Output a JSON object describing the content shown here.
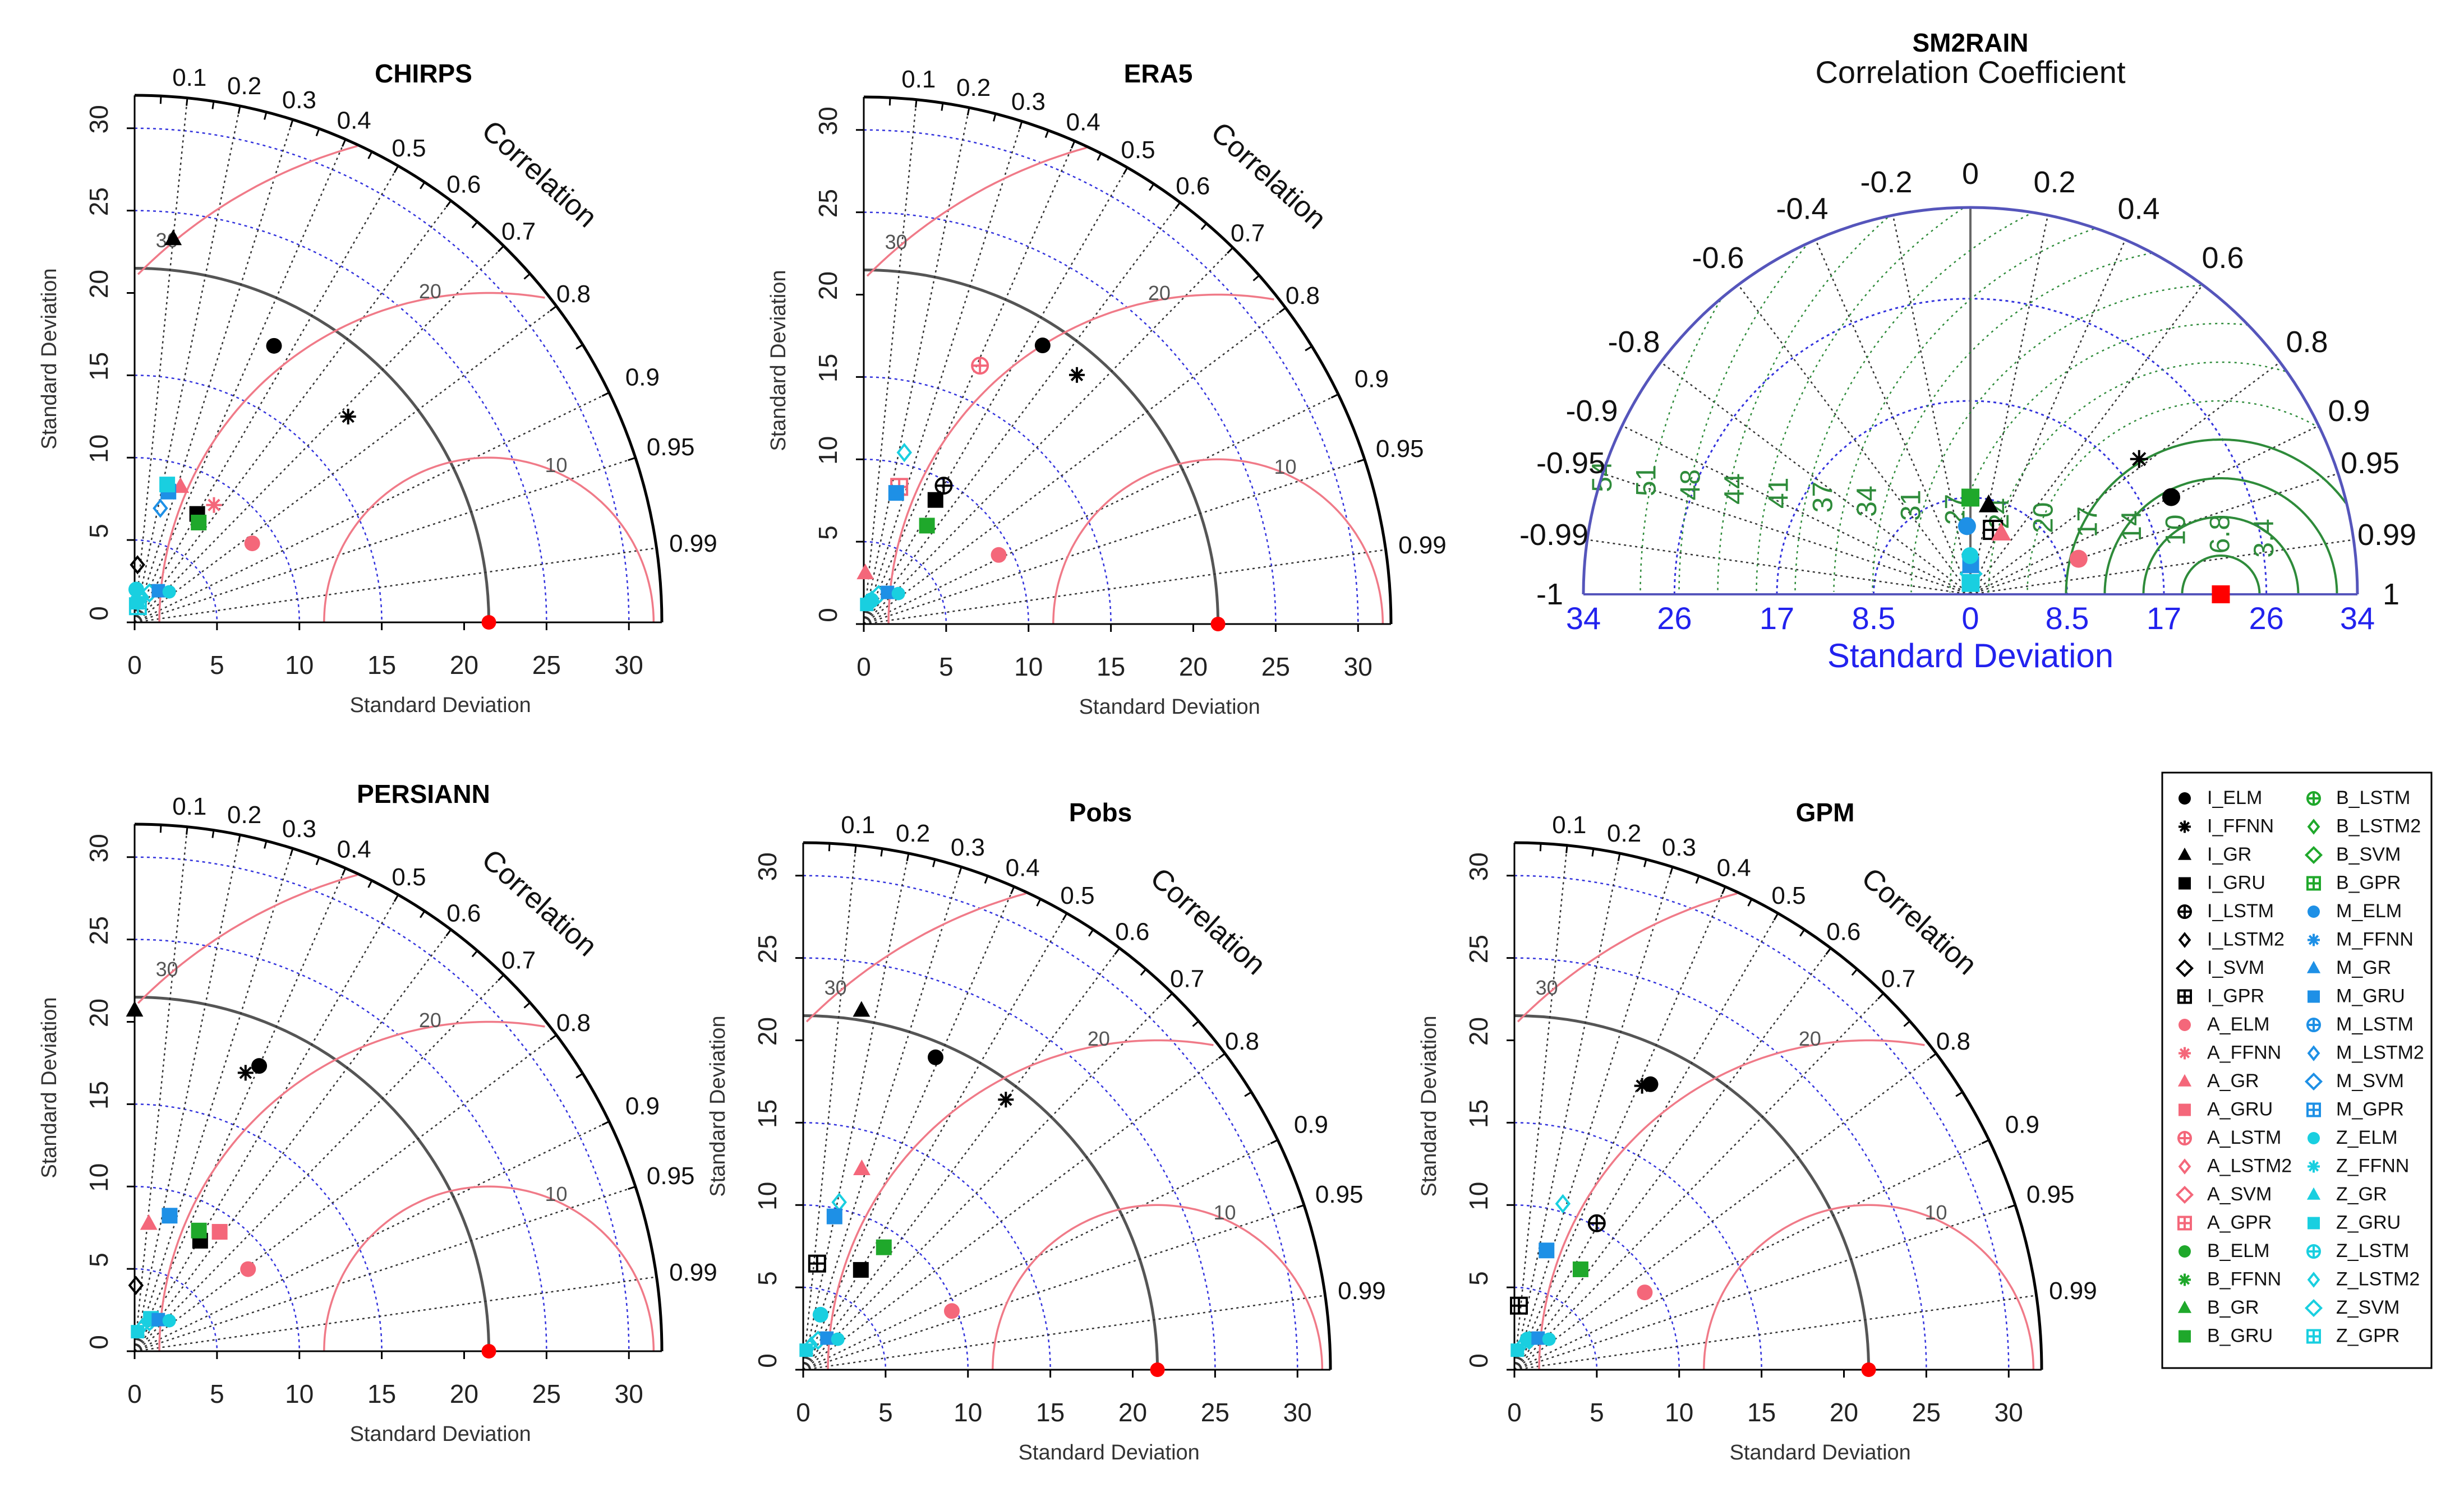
{
  "chart_data": [
    {
      "type": "scatter",
      "chart_kind": "taylor",
      "title": "CHIRPS",
      "xlabel": "Standard Deviation",
      "ylabel": "Standard Deviation",
      "correlation_label": "Correlation",
      "sd_ticks": [
        0,
        5,
        10,
        15,
        20,
        25,
        30
      ],
      "xlim": [
        0,
        32
      ],
      "correlation_ticks": [
        "0.1",
        "0.2",
        "0.3",
        "0.4",
        "0.5",
        "0.6",
        "0.7",
        "0.8",
        "0.9",
        "0.95",
        "0.99"
      ],
      "rms_labels": [
        "10",
        "20",
        "30"
      ],
      "reference": {
        "sd": 21.5,
        "color": "#ff0000"
      },
      "points": [
        {
          "model": "I_ELM",
          "sd": 18.8,
          "r": 0.45
        },
        {
          "model": "I_FFNN",
          "sd": 18.0,
          "r": 0.72
        },
        {
          "model": "I_GR",
          "sd": 23.4,
          "r": 0.1
        },
        {
          "model": "I_GRU",
          "sd": 7.6,
          "r": 0.5
        },
        {
          "model": "A_ELM",
          "sd": 8.6,
          "r": 0.83
        },
        {
          "model": "A_FFNN",
          "sd": 8.6,
          "r": 0.56
        },
        {
          "model": "A_GR",
          "sd": 8.7,
          "r": 0.32
        },
        {
          "model": "B_GRU",
          "sd": 7.2,
          "r": 0.54
        },
        {
          "model": "M_GRU",
          "sd": 8.2,
          "r": 0.25
        },
        {
          "model": "M_LSTM2",
          "sd": 7.1,
          "r": 0.22
        },
        {
          "model": "Z_GRU",
          "sd": 8.6,
          "r": 0.23
        },
        {
          "model": "Z_ELM",
          "sd": 2.0,
          "r": 0.05
        },
        {
          "model": "Z_GPR",
          "sd": 1.0,
          "r": 0.2
        },
        {
          "model": "I_LSTM2",
          "sd": 3.5,
          "r": 0.05
        }
      ]
    },
    {
      "type": "scatter",
      "chart_kind": "taylor",
      "title": "ERA5",
      "xlabel": "Standard Deviation",
      "ylabel": "Standard Deviation",
      "correlation_label": "Correlation",
      "sd_ticks": [
        0,
        5,
        10,
        15,
        20,
        25,
        30
      ],
      "xlim": [
        0,
        32
      ],
      "correlation_ticks": [
        "0.1",
        "0.2",
        "0.3",
        "0.4",
        "0.5",
        "0.6",
        "0.7",
        "0.8",
        "0.9",
        "0.95",
        "0.99"
      ],
      "rms_labels": [
        "10",
        "20",
        "30"
      ],
      "reference": {
        "sd": 21.5,
        "color": "#ff0000"
      },
      "points": [
        {
          "model": "I_ELM",
          "sd": 20.1,
          "r": 0.54
        },
        {
          "model": "I_FFNN",
          "sd": 19.9,
          "r": 0.65
        },
        {
          "model": "A_LSTM",
          "sd": 17.2,
          "r": 0.41
        },
        {
          "model": "I_LSTM",
          "sd": 9.7,
          "r": 0.5
        },
        {
          "model": "I_GRU",
          "sd": 8.7,
          "r": 0.5
        },
        {
          "model": "A_ELM",
          "sd": 9.2,
          "r": 0.89
        },
        {
          "model": "A_GPR",
          "sd": 8.6,
          "r": 0.25
        },
        {
          "model": "M_GRU",
          "sd": 8.2,
          "r": 0.24
        },
        {
          "model": "Z_LSTM2",
          "sd": 10.7,
          "r": 0.23
        },
        {
          "model": "B_GRU",
          "sd": 7.1,
          "r": 0.54
        },
        {
          "model": "A_GR",
          "sd": 3.1,
          "r": 0.03
        },
        {
          "model": "Z_ELM",
          "sd": 1.5,
          "r": 0.3
        }
      ]
    },
    {
      "type": "scatter",
      "chart_kind": "taylor_semicircle",
      "title": "SM2RAIN",
      "subtitle": "Correlation Coefficient",
      "xlabel": "Standard Deviation",
      "sd_ticks": [
        "34",
        "26",
        "17",
        "8.5",
        "0",
        "8.5",
        "17",
        "26",
        "34"
      ],
      "correlation_ticks": [
        "-1",
        "-0.99",
        "-0.95",
        "-0.9",
        "-0.8",
        "-0.6",
        "-0.4",
        "-0.2",
        "0",
        "0.2",
        "0.4",
        "0.6",
        "0.8",
        "0.9",
        "0.95",
        "0.99",
        "1"
      ],
      "rms_labels": [
        "54",
        "51",
        "48",
        "44",
        "41",
        "37",
        "34",
        "31",
        "27",
        "24",
        "20",
        "17",
        "14",
        "10",
        "6.8",
        "3.4"
      ],
      "reference": {
        "sd": 22.0,
        "color": "#ff0000"
      },
      "points": [
        {
          "model": "I_ELM",
          "sd": 19.6,
          "r": 0.9
        },
        {
          "model": "I_FFNN",
          "sd": 19.0,
          "r": 0.78
        },
        {
          "model": "I_GR",
          "sd": 8.0,
          "r": 0.2
        },
        {
          "model": "I_GPR",
          "sd": 6.0,
          "r": 0.33
        },
        {
          "model": "A_ELM",
          "sd": 10.0,
          "r": 0.95
        },
        {
          "model": "A_GR",
          "sd": 6.0,
          "r": 0.45
        },
        {
          "model": "B_GRU",
          "sd": 8.5,
          "r": 0.0
        },
        {
          "model": "M_ELM",
          "sd": 6.0,
          "r": -0.05
        },
        {
          "model": "Z_GRU",
          "sd": 1.0,
          "r": 0.02
        }
      ]
    },
    {
      "type": "scatter",
      "chart_kind": "taylor",
      "title": "PERSIANN",
      "xlabel": "Standard Deviation",
      "ylabel": "Standard Deviation",
      "correlation_label": "Correlation",
      "sd_ticks": [
        0,
        5,
        10,
        15,
        20,
        25,
        30
      ],
      "xlim": [
        0,
        32
      ],
      "correlation_ticks": [
        "0.1",
        "0.2",
        "0.3",
        "0.4",
        "0.5",
        "0.6",
        "0.7",
        "0.8",
        "0.9",
        "0.95",
        "0.99"
      ],
      "rms_labels": [
        "10",
        "20",
        "30"
      ],
      "reference": {
        "sd": 21.5,
        "color": "#ff0000"
      },
      "points": [
        {
          "model": "I_GR",
          "sd": 20.7,
          "r": 0.0
        },
        {
          "model": "I_ELM",
          "sd": 18.9,
          "r": 0.4
        },
        {
          "model": "I_FFNN",
          "sd": 18.2,
          "r": 0.37
        },
        {
          "model": "I_GRU",
          "sd": 7.8,
          "r": 0.51
        },
        {
          "model": "A_GRU",
          "sd": 8.9,
          "r": 0.58
        },
        {
          "model": "A_ELM",
          "sd": 8.5,
          "r": 0.81
        },
        {
          "model": "A_GR",
          "sd": 7.8,
          "r": 0.11
        },
        {
          "model": "M_GRU",
          "sd": 8.5,
          "r": 0.25
        },
        {
          "model": "B_GRU",
          "sd": 8.3,
          "r": 0.47
        },
        {
          "model": "I_LSTM2",
          "sd": 4.0,
          "r": 0.02
        },
        {
          "model": "Z_GRU",
          "sd": 2.2,
          "r": 0.45
        }
      ]
    },
    {
      "type": "scatter",
      "chart_kind": "taylor",
      "title": "Pobs",
      "xlabel": "Standard Deviation",
      "ylabel": "Standard Deviation",
      "correlation_label": "Correlation",
      "sd_ticks": [
        0,
        5,
        10,
        15,
        20,
        25,
        30
      ],
      "xlim": [
        0,
        32
      ],
      "correlation_ticks": [
        "0.1",
        "0.2",
        "0.3",
        "0.4",
        "0.5",
        "0.6",
        "0.7",
        "0.8",
        "0.9",
        "0.95",
        "0.99"
      ],
      "rms_labels": [
        "10",
        "20",
        "30"
      ],
      "reference": {
        "sd": 21.5,
        "color": "#ff0000"
      },
      "points": [
        {
          "model": "I_GR",
          "sd": 22.1,
          "r": 0.16
        },
        {
          "model": "I_ELM",
          "sd": 20.6,
          "r": 0.39
        },
        {
          "model": "I_FFNN",
          "sd": 20.5,
          "r": 0.6
        },
        {
          "model": "A_GR",
          "sd": 12.7,
          "r": 0.28
        },
        {
          "model": "Z_LSTM2",
          "sd": 10.4,
          "r": 0.21
        },
        {
          "model": "M_GRU",
          "sd": 9.5,
          "r": 0.2
        },
        {
          "model": "B_GRU",
          "sd": 8.9,
          "r": 0.55
        },
        {
          "model": "I_GRU",
          "sd": 7.0,
          "r": 0.5
        },
        {
          "model": "A_ELM",
          "sd": 9.7,
          "r": 0.93
        },
        {
          "model": "I_GPR",
          "sd": 6.5,
          "r": 0.13
        },
        {
          "model": "Z_ELM",
          "sd": 3.5,
          "r": 0.3
        }
      ]
    },
    {
      "type": "scatter",
      "chart_kind": "taylor",
      "title": "GPM",
      "xlabel": "Standard Deviation",
      "ylabel": "Standard Deviation",
      "correlation_label": "Correlation",
      "sd_ticks": [
        0,
        5,
        10,
        15,
        20,
        25,
        30
      ],
      "xlim": [
        0,
        32
      ],
      "correlation_ticks": [
        "0.1",
        "0.2",
        "0.3",
        "0.4",
        "0.5",
        "0.6",
        "0.7",
        "0.8",
        "0.9",
        "0.95",
        "0.99"
      ],
      "rms_labels": [
        "10",
        "20",
        "30"
      ],
      "reference": {
        "sd": 21.5,
        "color": "#ff0000"
      },
      "points": [
        {
          "model": "I_ELM",
          "sd": 19.2,
          "r": 0.43
        },
        {
          "model": "I_FFNN",
          "sd": 18.9,
          "r": 0.41
        },
        {
          "model": "I_LSTM",
          "sd": 10.2,
          "r": 0.49
        },
        {
          "model": "A_ELM",
          "sd": 9.2,
          "r": 0.86
        },
        {
          "model": "B_GRU",
          "sd": 7.3,
          "r": 0.55
        },
        {
          "model": "M_GRU",
          "sd": 7.5,
          "r": 0.26
        },
        {
          "model": "Z_LSTM2",
          "sd": 10.5,
          "r": 0.28
        },
        {
          "model": "I_GPR",
          "sd": 3.9,
          "r": 0.07
        },
        {
          "model": "Z_ELM",
          "sd": 2.0,
          "r": 0.4
        }
      ]
    }
  ],
  "legend": {
    "col1": [
      "I_ELM",
      "I_FFNN",
      "I_GR",
      "I_GRU",
      "I_LSTM",
      "I_LSTM2",
      "I_SVM",
      "I_GPR",
      "A_ELM",
      "A_FFNN",
      "A_GR",
      "A_GRU",
      "A_LSTM",
      "A_LSTM2",
      "A_SVM",
      "A_GPR",
      "B_ELM",
      "B_FFNN",
      "B_GR",
      "B_GRU"
    ],
    "col2": [
      "B_LSTM",
      "B_LSTM2",
      "B_SVM",
      "B_GPR",
      "M_ELM",
      "M_FFNN",
      "M_GR",
      "M_GRU",
      "M_LSTM",
      "M_LSTM2",
      "M_SVM",
      "M_GPR",
      "Z_ELM",
      "Z_FFNN",
      "Z_GR",
      "Z_GRU",
      "Z_LSTM",
      "Z_LSTM2",
      "Z_SVM",
      "Z_GPR"
    ]
  },
  "colors": {
    "I": "#000000",
    "A": "#f4677a",
    "B": "#1fa82b",
    "M": "#1e90e6",
    "Z": "#19cfe0",
    "reference": "#ff0000",
    "rms": "#f07a88",
    "sd_grid": "#3333dd",
    "corr_grid": "#333333",
    "rms_green": "#2e8b3a",
    "blue_text": "#2222ee"
  }
}
